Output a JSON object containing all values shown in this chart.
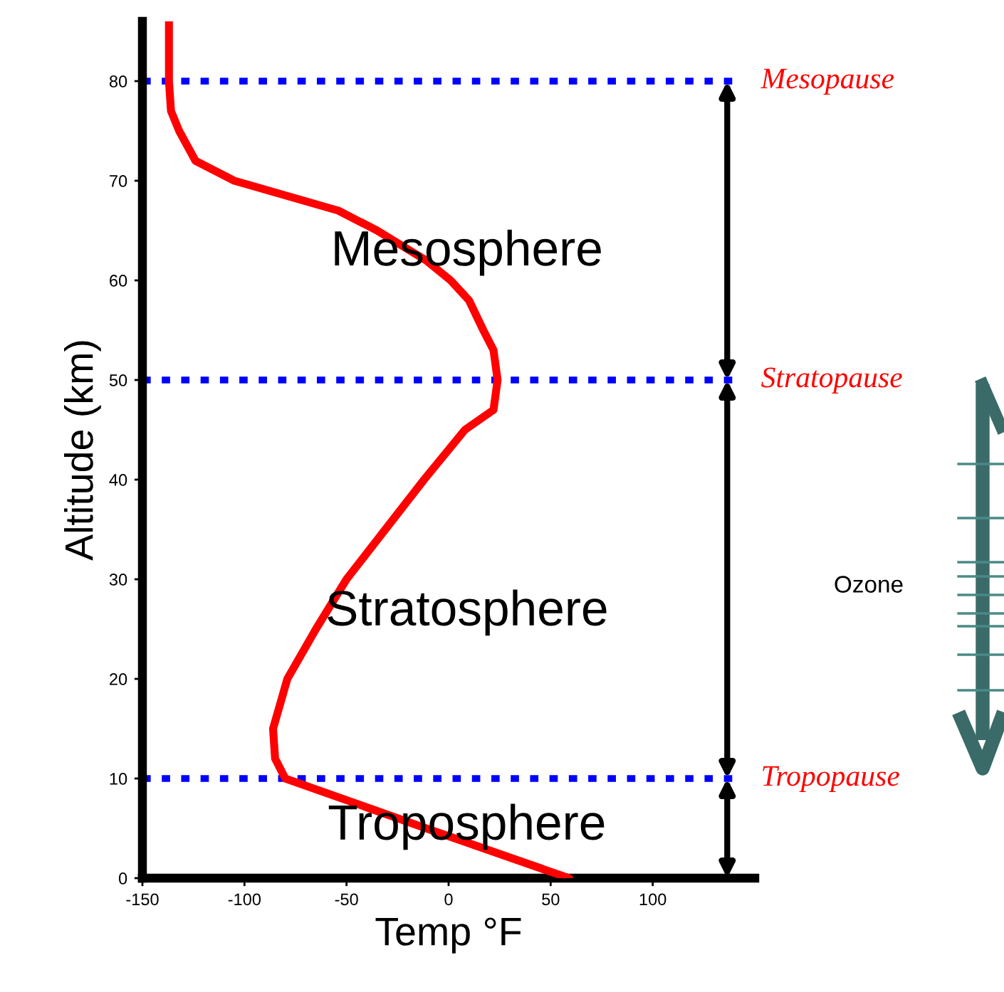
{
  "chart_data": {
    "type": "line",
    "xlabel": "Temp °F",
    "ylabel": "Altitude (km)",
    "series": [
      {
        "color": "#ff0000",
        "x": [
          59,
          -11,
          -80,
          -85,
          -86,
          -79,
          -65,
          -50,
          -31,
          -12,
          8,
          22,
          24,
          22,
          17,
          10,
          1,
          -11,
          -35,
          -54,
          -105,
          -124,
          -132,
          -136,
          -137,
          -137
        ],
        "values": [
          0,
          5,
          10,
          12,
          15,
          20,
          25,
          30,
          35,
          40,
          45,
          47,
          50,
          53,
          55,
          58,
          60,
          62,
          65,
          67,
          70,
          72,
          75,
          77,
          80,
          86
        ]
      }
    ],
    "xlim": [
      -150,
      150
    ],
    "ylim": [
      0,
      86
    ],
    "xticks": [
      -150,
      -100,
      -50,
      0,
      50,
      100
    ],
    "yticks": [
      0,
      10,
      20,
      30,
      40,
      50,
      60,
      70,
      80
    ],
    "ref_lines": [
      {
        "axis": "y",
        "value": 80,
        "label": "Mesopause",
        "color": "#0000ff",
        "line_style": "dotted"
      },
      {
        "axis": "y",
        "value": 50,
        "label": "Stratopause",
        "color": "#0000ff",
        "line_style": "dotted"
      },
      {
        "axis": "y",
        "value": 10,
        "label": "Tropopause",
        "color": "#0000ff",
        "line_style": "dotted"
      }
    ],
    "annotations": [
      "Mesosphere",
      "Stratosphere",
      "Troposphere",
      "Ozone"
    ]
  }
}
